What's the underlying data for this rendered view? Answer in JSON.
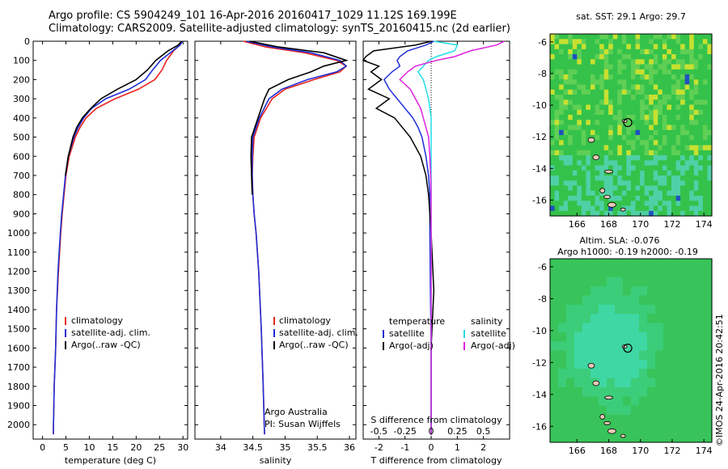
{
  "header": {
    "line1": "Argo profile: CS 5904249_101 16-Apr-2016 20160417_1029 11.12S 169.199E",
    "line2": "Climatology: CARS2009. Satellite-adjusted climatology: synTS_20160415.nc (2d earlier)"
  },
  "credit": "©IMOS 24-Apr-2016 20:42:51",
  "colors": {
    "climatology": "#e8231f",
    "satellite": "#1f2fd6",
    "argo": "#000000",
    "sat_salinity": "#22dde8",
    "argo_adj_salinity": "#e020e0"
  },
  "chart_data": [
    {
      "type": "line",
      "id": "temperature",
      "xlabel": "temperature (deg C)",
      "ylabel": "",
      "xlim": [
        -2,
        31
      ],
      "ylim": [
        2075,
        0
      ],
      "xticks": [
        0,
        5,
        10,
        15,
        20,
        25,
        30
      ],
      "yticks": [
        0,
        100,
        200,
        300,
        400,
        500,
        600,
        700,
        800,
        900,
        1000,
        1100,
        1200,
        1300,
        1400,
        1500,
        1600,
        1700,
        1800,
        1900,
        2000
      ],
      "legend": [
        "climatology",
        "satellite-adj. clim.",
        "Argo(..raw -QC)"
      ],
      "depth": [
        0,
        20,
        50,
        100,
        150,
        200,
        250,
        300,
        350,
        400,
        450,
        500,
        600,
        700,
        800,
        900,
        1000,
        1200,
        1400,
        1600,
        1800,
        2050
      ],
      "series": [
        {
          "name": "climatology",
          "values": [
            29.8,
            29.3,
            28.0,
            26.5,
            25.5,
            24.0,
            20.5,
            15.5,
            11.5,
            9.3,
            8.0,
            7.0,
            5.7,
            5.0,
            4.6,
            4.2,
            3.9,
            3.4,
            3.0,
            2.8,
            2.5,
            2.3
          ]
        },
        {
          "name": "satellite-adj. clim.",
          "values": [
            29.9,
            29.4,
            27.8,
            25.2,
            23.5,
            22.0,
            18.5,
            13.5,
            10.5,
            8.8,
            7.6,
            6.7,
            5.5,
            4.9,
            4.5,
            4.1,
            3.8,
            3.3,
            3.0,
            2.8,
            2.5,
            2.3
          ]
        },
        {
          "name": "Argo(..raw -QC)",
          "values": [
            29.7,
            29.0,
            26.8,
            24.2,
            22.4,
            20.0,
            16.0,
            12.5,
            10.3,
            8.5,
            7.3,
            6.5,
            5.5,
            4.9
          ]
        }
      ]
    },
    {
      "type": "line",
      "id": "salinity",
      "xlabel": "salinity",
      "ylabel": "",
      "xlim": [
        33.6,
        36.1
      ],
      "ylim": [
        2075,
        0
      ],
      "xticks": [
        34,
        34.5,
        35,
        35.5,
        36
      ],
      "xticklabels": [
        "34",
        "34.5",
        "35",
        "35.5",
        "36"
      ],
      "legend": [
        "climatology",
        "satellite-adj. clim.",
        "Argo(..raw -QC)"
      ],
      "annotation": [
        "Argo Australia",
        "PI: Susan Wijffels"
      ],
      "depth": [
        0,
        30,
        60,
        100,
        130,
        160,
        200,
        250,
        300,
        400,
        500,
        600,
        700,
        800,
        900,
        1000,
        1200,
        1500,
        1800,
        2050
      ],
      "series": [
        {
          "name": "climatology",
          "values": [
            34.35,
            34.7,
            35.3,
            35.8,
            35.95,
            35.85,
            35.45,
            35.0,
            34.8,
            34.62,
            34.52,
            34.5,
            34.49,
            34.5,
            34.52,
            34.55,
            34.59,
            34.63,
            34.66,
            34.68
          ]
        },
        {
          "name": "satellite-adj. clim.",
          "values": [
            34.4,
            34.8,
            35.4,
            35.85,
            35.95,
            35.8,
            35.35,
            34.95,
            34.75,
            34.6,
            34.5,
            34.49,
            34.49,
            34.5,
            34.52,
            34.55,
            34.59,
            34.63,
            34.66,
            34.68
          ]
        },
        {
          "name": "Argo(..raw -QC)",
          "values": [
            34.45,
            34.9,
            35.6,
            35.95,
            35.6,
            35.4,
            35.05,
            34.75,
            34.68,
            34.58,
            34.48,
            34.47,
            34.48,
            34.49
          ]
        }
      ]
    },
    {
      "type": "line",
      "id": "difference",
      "xlabel": "T difference from climatology",
      "x2label": "S difference from climatology",
      "xlim": [
        -2.6,
        3.0
      ],
      "ylim": [
        2075,
        0
      ],
      "xticks": [
        -2,
        -1,
        0,
        1,
        2
      ],
      "x2ticks": [
        -0.5,
        -0.25,
        0,
        0.25,
        0.5
      ],
      "x2ticklabels": [
        "-0.5",
        "-0.25",
        "0",
        "0.25",
        "0.5"
      ],
      "legend_temperature": {
        "title": "temperature",
        "items": [
          "satellite",
          "Argo(-adj)"
        ]
      },
      "legend_salinity": {
        "title": "salinity",
        "items": [
          "satellite",
          "Argo(-adj)"
        ]
      },
      "depth": [
        0,
        20,
        50,
        80,
        100,
        130,
        160,
        200,
        250,
        300,
        350,
        400,
        450,
        500,
        600,
        700,
        800,
        1000,
        1300,
        1600,
        2050
      ],
      "series": [
        {
          "name": "temperature satellite",
          "values": [
            0.1,
            -0.2,
            -0.9,
            -1.2,
            -1.3,
            -1.2,
            -1.5,
            -1.8,
            -1.6,
            -1.3,
            -1.0,
            -0.7,
            -0.5,
            -0.35,
            -0.2,
            -0.1,
            -0.05,
            -0.05,
            -0.03,
            0.0,
            0.0
          ]
        },
        {
          "name": "temperature Argo(-adj)",
          "values": [
            0.0,
            -0.6,
            -2.2,
            -2.5,
            -2.6,
            -2.0,
            -2.3,
            -1.9,
            -2.4,
            -1.6,
            -2.1,
            -1.4,
            -1.1,
            -0.8,
            -0.4,
            -0.2,
            -0.1,
            0.0,
            0.1,
            0.0,
            0.0
          ]
        },
        {
          "name": "salinity satellite",
          "values": [
            0.1,
            1.0,
            0.9,
            0.2,
            -0.1,
            -0.3,
            -0.5,
            -0.3,
            -0.2,
            -0.1,
            -0.05,
            0.0,
            0.0,
            0.0,
            0.0,
            0.0,
            0.0,
            0.0,
            0.0,
            0.0,
            0.0
          ]
        },
        {
          "name": "salinity Argo(-adj)",
          "values": [
            2.8,
            2.5,
            1.5,
            0.9,
            0.2,
            -0.6,
            -0.9,
            -1.2,
            -0.8,
            -0.6,
            -0.4,
            -0.3,
            -0.2,
            -0.1,
            -0.05,
            -0.02,
            0.0,
            0.0,
            0.0,
            0.0,
            0.0
          ]
        }
      ]
    },
    {
      "type": "heatmap",
      "id": "sst_map",
      "title": "sat. SST: 29.1  Argo: 29.7",
      "xlim": [
        164.3,
        174.5
      ],
      "ylim": [
        -17,
        -5.5
      ],
      "xticks": [
        166,
        168,
        170,
        172,
        174
      ],
      "yticks": [
        -6,
        -8,
        -10,
        -12,
        -14,
        -16
      ],
      "argo_position": [
        169.2,
        -11.1
      ]
    },
    {
      "type": "heatmap",
      "id": "sla_map",
      "title_line1": "Altim. SLA: -0.076",
      "title_line2": "Argo h1000: -0.19 h2000: -0.19",
      "xlim": [
        164.3,
        174.5
      ],
      "ylim": [
        -17,
        -5.5
      ],
      "xticks": [
        166,
        168,
        170,
        172,
        174
      ],
      "yticks": [
        -6,
        -8,
        -10,
        -12,
        -14,
        -16
      ],
      "argo_position": [
        169.2,
        -11.1
      ]
    }
  ]
}
